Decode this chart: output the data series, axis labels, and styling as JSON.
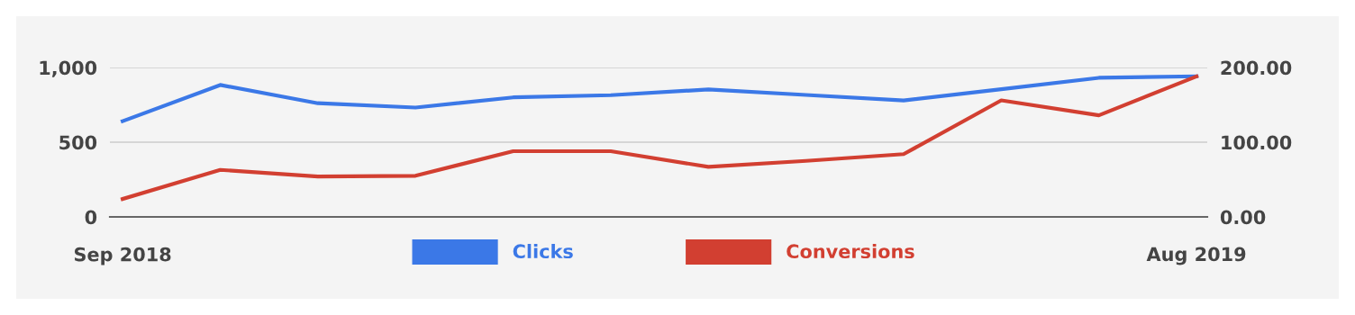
{
  "chart_data": {
    "type": "line",
    "categories": [
      "Sep 2018",
      null,
      null,
      null,
      null,
      null,
      null,
      null,
      null,
      null,
      null,
      "Aug 2019"
    ],
    "series": [
      {
        "name": "Clicks",
        "color": "#3b78e7",
        "values": [
          641,
          883,
          761,
          732,
          800,
          815,
          853,
          816,
          779,
          855,
          931,
          941
        ]
      },
      {
        "name": "Conversions",
        "color": "#d23f31",
        "axis": "y2",
        "values": [
          24,
          63,
          54,
          55,
          88,
          88,
          67,
          75,
          84,
          156,
          136,
          188
        ]
      }
    ],
    "ylim": [
      0,
      1000
    ],
    "yticks": [
      0,
      500,
      {
        "value": 1000,
        "label": "1,000"
      }
    ],
    "y2lim": [
      0,
      200
    ],
    "y2ticks": [
      {
        "value": 0,
        "label": "0.00"
      },
      {
        "value": 100,
        "label": "100.00"
      },
      {
        "value": 200,
        "label": "200.00"
      }
    ],
    "grid": "y",
    "legend": "bottom",
    "marker": "none",
    "line_style": "solid"
  }
}
